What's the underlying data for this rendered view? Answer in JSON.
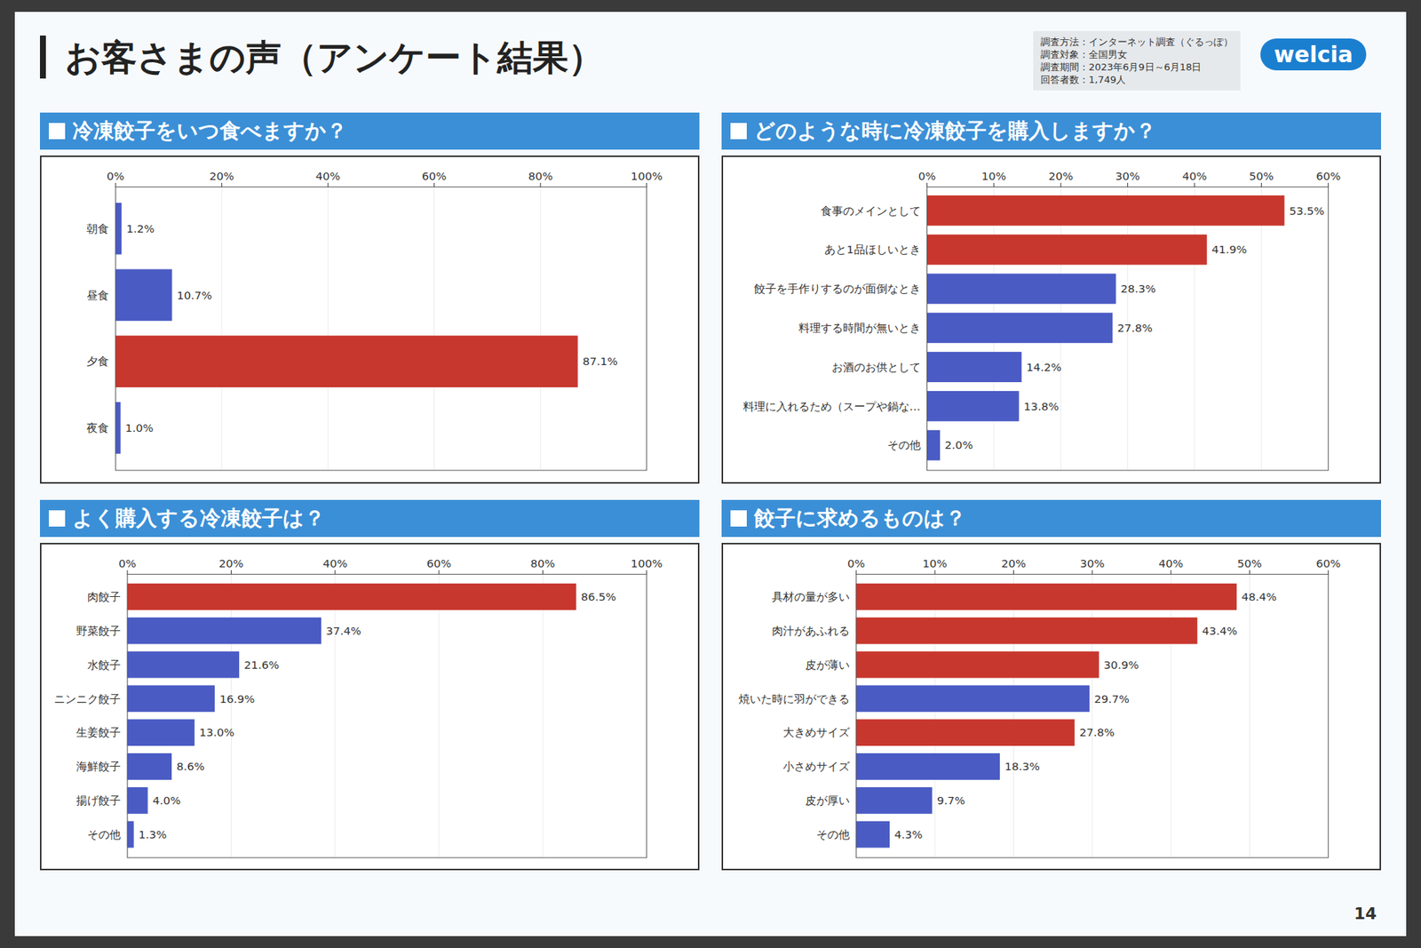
{
  "slide": {
    "title": "お客さまの声（アンケート結果）",
    "survey_info": [
      "調査方法：インターネット調査（ぐるっぽ）",
      "調査対象：全国男女",
      "調査期間：2023年6月9日～6月18日",
      "回答者数：1,749人"
    ],
    "logo": "welcia",
    "page_number": "14"
  },
  "chart_data": [
    {
      "type": "bar",
      "orientation": "horizontal",
      "title": "冷凍餃子をいつ食べますか？",
      "categories": [
        "朝食",
        "昼食",
        "夕食",
        "夜食"
      ],
      "values": [
        1.2,
        10.7,
        87.1,
        1.0
      ],
      "value_labels": [
        "1.2%",
        "10.7%",
        "87.1%",
        "1.0%"
      ],
      "colors": [
        "#4a5bc4",
        "#4a5bc4",
        "#c8372d",
        "#4a5bc4"
      ],
      "xlim": [
        0,
        100
      ],
      "xticks": [
        {
          "value": 0,
          "label": "0%"
        },
        {
          "value": 20,
          "label": "20%"
        },
        {
          "value": 40,
          "label": "40%"
        },
        {
          "value": 60,
          "label": "60%"
        },
        {
          "value": 80,
          "label": "80%"
        },
        {
          "value": 100,
          "label": "100%"
        }
      ],
      "grid": true,
      "data_labels": true
    },
    {
      "type": "bar",
      "orientation": "horizontal",
      "title": "どのような時に冷凍餃子を購入しますか？",
      "categories": [
        "食事のメインとして",
        "あと1品ほしいとき",
        "餃子を手作りするのが面倒なとき",
        "料理する時間が無いとき",
        "お酒のお供として",
        "料理に入れるため（スープや鍋な…",
        "その他"
      ],
      "values": [
        53.5,
        41.9,
        28.3,
        27.8,
        14.2,
        13.8,
        2.0
      ],
      "value_labels": [
        "53.5%",
        "41.9%",
        "28.3%",
        "27.8%",
        "14.2%",
        "13.8%",
        "2.0%"
      ],
      "colors": [
        "#c8372d",
        "#c8372d",
        "#4a5bc4",
        "#4a5bc4",
        "#4a5bc4",
        "#4a5bc4",
        "#4a5bc4"
      ],
      "xlim": [
        0,
        60
      ],
      "xticks": [
        {
          "value": 0,
          "label": "0%"
        },
        {
          "value": 10,
          "label": "10%"
        },
        {
          "value": 20,
          "label": "20%"
        },
        {
          "value": 30,
          "label": "30%"
        },
        {
          "value": 40,
          "label": "40%"
        },
        {
          "value": 50,
          "label": "50%"
        },
        {
          "value": 60,
          "label": "60%"
        }
      ],
      "grid": true,
      "data_labels": true
    },
    {
      "type": "bar",
      "orientation": "horizontal",
      "title": "よく購入する冷凍餃子は？",
      "categories": [
        "肉餃子",
        "野菜餃子",
        "水餃子",
        "ニンニク餃子",
        "生姜餃子",
        "海鮮餃子",
        "揚げ餃子",
        "その他"
      ],
      "values": [
        86.5,
        37.4,
        21.6,
        16.9,
        13.0,
        8.6,
        4.0,
        1.3
      ],
      "value_labels": [
        "86.5%",
        "37.4%",
        "21.6%",
        "16.9%",
        "13.0%",
        "8.6%",
        "4.0%",
        "1.3%"
      ],
      "colors": [
        "#c8372d",
        "#4a5bc4",
        "#4a5bc4",
        "#4a5bc4",
        "#4a5bc4",
        "#4a5bc4",
        "#4a5bc4",
        "#4a5bc4"
      ],
      "xlim": [
        0,
        100
      ],
      "xticks": [
        {
          "value": 0,
          "label": "0%"
        },
        {
          "value": 20,
          "label": "20%"
        },
        {
          "value": 40,
          "label": "40%"
        },
        {
          "value": 60,
          "label": "60%"
        },
        {
          "value": 80,
          "label": "80%"
        },
        {
          "value": 100,
          "label": "100%"
        }
      ],
      "grid": true,
      "data_labels": true
    },
    {
      "type": "bar",
      "orientation": "horizontal",
      "title": "餃子に求めるものは？",
      "categories": [
        "具材の量が多い",
        "肉汁があふれる",
        "皮が薄い",
        "焼いた時に羽ができる",
        "大きめサイズ",
        "小さめサイズ",
        "皮が厚い",
        "その他"
      ],
      "values": [
        48.4,
        43.4,
        30.9,
        29.7,
        27.8,
        18.3,
        9.7,
        4.3
      ],
      "value_labels": [
        "48.4%",
        "43.4%",
        "30.9%",
        "29.7%",
        "27.8%",
        "18.3%",
        "9.7%",
        "4.3%"
      ],
      "colors": [
        "#c8372d",
        "#c8372d",
        "#c8372d",
        "#4a5bc4",
        "#c8372d",
        "#4a5bc4",
        "#4a5bc4",
        "#4a5bc4"
      ],
      "xlim": [
        0,
        60
      ],
      "xticks": [
        {
          "value": 0,
          "label": "0%"
        },
        {
          "value": 10,
          "label": "10%"
        },
        {
          "value": 20,
          "label": "20%"
        },
        {
          "value": 30,
          "label": "30%"
        },
        {
          "value": 40,
          "label": "40%"
        },
        {
          "value": 50,
          "label": "50%"
        },
        {
          "value": 60,
          "label": "60%"
        }
      ],
      "grid": true,
      "data_labels": true
    }
  ]
}
